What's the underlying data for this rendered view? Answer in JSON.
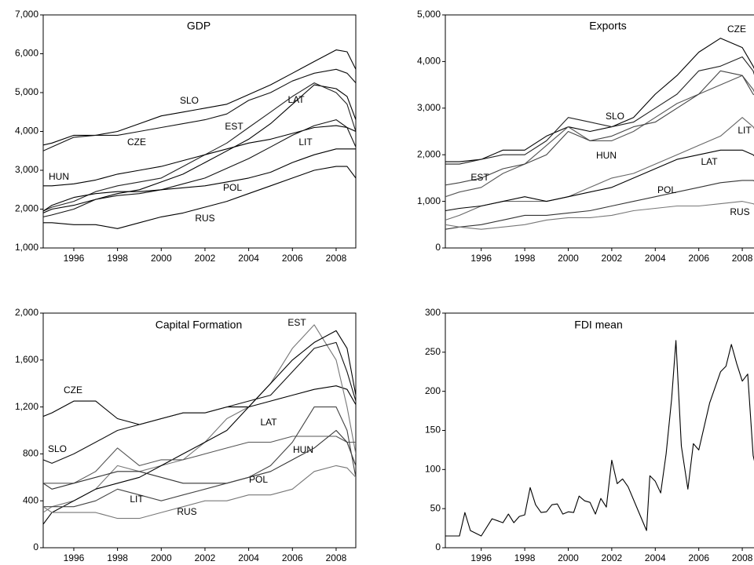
{
  "chart_data": [
    {
      "type": "line",
      "title": "GDP",
      "x": [
        1994.6,
        1995,
        1996,
        1997,
        1998,
        1999,
        2000,
        2001,
        2002,
        2003,
        2004,
        2005,
        2006,
        2007,
        2008,
        2008.5,
        2008.9
      ],
      "xlim": [
        1994.6,
        2008.9
      ],
      "xticks": [
        1996,
        1998,
        2000,
        2002,
        2004,
        2006,
        2008
      ],
      "ylim": [
        1000,
        7000
      ],
      "yticks": [
        {
          "value": 1000,
          "label": "1,000"
        },
        {
          "value": 2000,
          "label": "2,000"
        },
        {
          "value": 3000,
          "label": "3,000"
        },
        {
          "value": 4000,
          "label": "4,000"
        },
        {
          "value": 5000,
          "label": "5,000"
        },
        {
          "value": 6000,
          "label": "6,000"
        },
        {
          "value": 7000,
          "label": "7,000"
        }
      ],
      "series": [
        {
          "name": "SLO",
          "color": "#000000",
          "values": [
            3650,
            3700,
            3900,
            3900,
            4000,
            4200,
            4400,
            4500,
            4600,
            4700,
            4950,
            5200,
            5500,
            5800,
            6100,
            6050,
            5600
          ]
        },
        {
          "name": "CZE",
          "color": "#111111",
          "values": [
            3500,
            3600,
            3850,
            3900,
            3900,
            4000,
            4100,
            4200,
            4300,
            4450,
            4800,
            5000,
            5300,
            5500,
            5600,
            5500,
            5250
          ]
        },
        {
          "name": "LAT",
          "color": "#000000",
          "values": [
            1900,
            2000,
            2100,
            2250,
            2400,
            2500,
            2700,
            2900,
            3200,
            3500,
            3800,
            4200,
            4700,
            5200,
            5100,
            4900,
            4300
          ]
        },
        {
          "name": "EST",
          "color": "#222222",
          "values": [
            1950,
            2050,
            2200,
            2450,
            2600,
            2700,
            2800,
            3100,
            3400,
            3700,
            4100,
            4500,
            4900,
            5250,
            5000,
            4700,
            4000
          ]
        },
        {
          "name": "HUN",
          "color": "#000000",
          "values": [
            2600,
            2600,
            2650,
            2750,
            2900,
            3000,
            3100,
            3250,
            3400,
            3550,
            3700,
            3800,
            3950,
            4100,
            4150,
            4100,
            4000
          ]
        },
        {
          "name": "LIT",
          "color": "#111111",
          "values": [
            1800,
            1850,
            2000,
            2250,
            2350,
            2400,
            2500,
            2650,
            2800,
            3050,
            3300,
            3600,
            3900,
            4150,
            4300,
            4100,
            3600
          ]
        },
        {
          "name": "POL",
          "color": "#000000",
          "values": [
            1950,
            2100,
            2300,
            2400,
            2450,
            2450,
            2500,
            2550,
            2600,
            2700,
            2800,
            2950,
            3200,
            3400,
            3550,
            3550,
            3550
          ]
        },
        {
          "name": "RUS",
          "color": "#000000",
          "values": [
            1650,
            1650,
            1600,
            1600,
            1500,
            1650,
            1800,
            1900,
            2050,
            2200,
            2400,
            2600,
            2800,
            3000,
            3100,
            3100,
            2800
          ]
        }
      ]
    },
    {
      "type": "line",
      "title": "Exports",
      "x": [
        1994.35,
        1995,
        1996,
        1997,
        1998,
        1999,
        2000,
        2001,
        2002,
        2003,
        2004,
        2005,
        2006,
        2007,
        2008,
        2008.5,
        2008.9
      ],
      "xlim": [
        1994.35,
        2008.9
      ],
      "xticks": [
        1996,
        1998,
        2000,
        2002,
        2004,
        2006,
        2008
      ],
      "ylim": [
        0,
        5000
      ],
      "yticks": [
        0,
        {
          "value": 1000,
          "label": "1,000"
        },
        {
          "value": 2000,
          "label": "2,000"
        },
        {
          "value": 3000,
          "label": "3,000"
        },
        {
          "value": 4000,
          "label": "4,000"
        },
        {
          "value": 5000,
          "label": "5,000"
        }
      ],
      "series": [
        {
          "name": "CZE",
          "color": "#000000",
          "values": [
            1850,
            1850,
            1900,
            2100,
            2100,
            2400,
            2600,
            2500,
            2600,
            2800,
            3300,
            3700,
            4200,
            4500,
            4300,
            3900,
            3500
          ]
        },
        {
          "name": "SLO",
          "color": "#222222",
          "values": [
            1800,
            1800,
            1900,
            2000,
            2000,
            2300,
            2800,
            2700,
            2600,
            2700,
            3000,
            3300,
            3800,
            3900,
            4100,
            3800,
            3200
          ]
        },
        {
          "name": "HUN",
          "color": "#555555",
          "values": [
            1100,
            1200,
            1300,
            1600,
            1800,
            2200,
            2600,
            2300,
            2300,
            2500,
            2800,
            3100,
            3300,
            3500,
            3700,
            3400,
            3000
          ]
        },
        {
          "name": "EST",
          "color": "#444444",
          "values": [
            1350,
            1400,
            1500,
            1700,
            1800,
            2000,
            2500,
            2300,
            2400,
            2600,
            2700,
            3000,
            3300,
            3800,
            3700,
            3300,
            3200
          ]
        },
        {
          "name": "LIT",
          "color": "#666666",
          "values": [
            600,
            700,
            900,
            1000,
            1000,
            1000,
            1100,
            1300,
            1500,
            1600,
            1800,
            2000,
            2200,
            2400,
            2800,
            2600,
            2300
          ]
        },
        {
          "name": "LAT",
          "color": "#000000",
          "values": [
            800,
            850,
            900,
            1000,
            1100,
            1000,
            1100,
            1200,
            1300,
            1500,
            1700,
            1900,
            2000,
            2100,
            2100,
            2000,
            1800
          ]
        },
        {
          "name": "POL",
          "color": "#333333",
          "values": [
            400,
            450,
            500,
            600,
            700,
            700,
            750,
            800,
            900,
            1000,
            1100,
            1200,
            1300,
            1400,
            1450,
            1450,
            1350
          ]
        },
        {
          "name": "RUS",
          "color": "#777777",
          "values": [
            500,
            450,
            400,
            450,
            500,
            600,
            650,
            650,
            700,
            800,
            850,
            900,
            900,
            950,
            1000,
            950,
            850
          ]
        }
      ]
    },
    {
      "type": "line",
      "title": "Capital Formation",
      "x": [
        1994.6,
        1995,
        1996,
        1997,
        1998,
        1999,
        2000,
        2001,
        2002,
        2003,
        2004,
        2005,
        2006,
        2007,
        2008,
        2008.5,
        2008.9
      ],
      "xlim": [
        1994.6,
        2008.9
      ],
      "xticks": [
        1996,
        1998,
        2000,
        2002,
        2004,
        2006,
        2008
      ],
      "ylim": [
        0,
        2000
      ],
      "yticks": [
        0,
        400,
        800,
        {
          "value": 1200,
          "label": "1,200"
        },
        {
          "value": 1600,
          "label": "1,600"
        },
        {
          "value": 2000,
          "label": "2,000"
        }
      ],
      "series": [
        {
          "name": "CZE",
          "color": "#000000",
          "values": [
            1120,
            1150,
            1250,
            1250,
            1100,
            1050,
            1100,
            1150,
            1150,
            1200,
            1200,
            1250,
            1300,
            1350,
            1380,
            1350,
            1220
          ]
        },
        {
          "name": "EST",
          "color": "#777777",
          "values": [
            300,
            350,
            400,
            500,
            700,
            650,
            700,
            750,
            900,
            1100,
            1200,
            1400,
            1700,
            1900,
            1600,
            1200,
            800
          ]
        },
        {
          "name": "LAT",
          "color": "#000000",
          "values": [
            200,
            300,
            400,
            500,
            550,
            600,
            700,
            800,
            900,
            1000,
            1200,
            1400,
            1600,
            1750,
            1850,
            1700,
            1300
          ]
        },
        {
          "name": "SLO",
          "color": "#111111",
          "values": [
            750,
            720,
            800,
            900,
            1000,
            1050,
            1100,
            1150,
            1150,
            1200,
            1250,
            1300,
            1500,
            1700,
            1750,
            1500,
            1250
          ]
        },
        {
          "name": "HUN",
          "color": "#555555",
          "values": [
            550,
            550,
            550,
            650,
            850,
            700,
            750,
            750,
            800,
            850,
            900,
            900,
            950,
            950,
            950,
            900,
            900
          ]
        },
        {
          "name": "POL",
          "color": "#333333",
          "values": [
            550,
            500,
            550,
            600,
            650,
            650,
            600,
            550,
            550,
            550,
            600,
            650,
            750,
            850,
            1000,
            900,
            700
          ]
        },
        {
          "name": "LIT",
          "color": "#444444",
          "values": [
            350,
            350,
            350,
            400,
            500,
            450,
            400,
            450,
            500,
            550,
            600,
            700,
            900,
            1200,
            1200,
            1000,
            600
          ]
        },
        {
          "name": "RUS",
          "color": "#777777",
          "values": [
            350,
            300,
            300,
            300,
            250,
            250,
            300,
            350,
            400,
            400,
            450,
            450,
            500,
            650,
            700,
            680,
            600
          ]
        }
      ]
    },
    {
      "type": "line",
      "title": "FDI mean",
      "x": [
        1994.35,
        1995,
        1995.25,
        1995.5,
        1996,
        1996.5,
        1997,
        1997.25,
        1997.5,
        1997.75,
        1998,
        1998.25,
        1998.5,
        1998.75,
        1999,
        1999.25,
        1999.5,
        1999.75,
        2000,
        2000.25,
        2000.5,
        2000.75,
        2001,
        2001.25,
        2001.5,
        2001.75,
        2002,
        2002.25,
        2002.5,
        2002.75,
        2003.25,
        2003.6,
        2003.75,
        2004,
        2004.25,
        2004.5,
        2004.75,
        2004.95,
        2005.2,
        2005.5,
        2005.75,
        2006,
        2006.5,
        2007,
        2007.25,
        2007.5,
        2007.75,
        2008,
        2008.25,
        2008.5,
        2008.9
      ],
      "xlim": [
        1994.35,
        2008.9
      ],
      "xticks": [
        1996,
        1998,
        2000,
        2002,
        2004,
        2006,
        2008
      ],
      "ylim": [
        0,
        300
      ],
      "yticks": [
        0,
        50,
        100,
        150,
        200,
        250,
        300
      ],
      "series": [
        {
          "name": "FDI mean",
          "color": "#000000",
          "values": [
            15,
            15,
            45,
            22,
            15,
            37,
            32,
            43,
            32,
            40,
            42,
            77,
            55,
            45,
            46,
            55,
            56,
            43,
            46,
            45,
            66,
            60,
            58,
            43,
            63,
            52,
            112,
            82,
            88,
            78,
            45,
            22,
            92,
            85,
            70,
            120,
            190,
            265,
            130,
            75,
            133,
            125,
            185,
            225,
            232,
            260,
            235,
            213,
            222,
            118,
            70
          ]
        }
      ]
    }
  ]
}
